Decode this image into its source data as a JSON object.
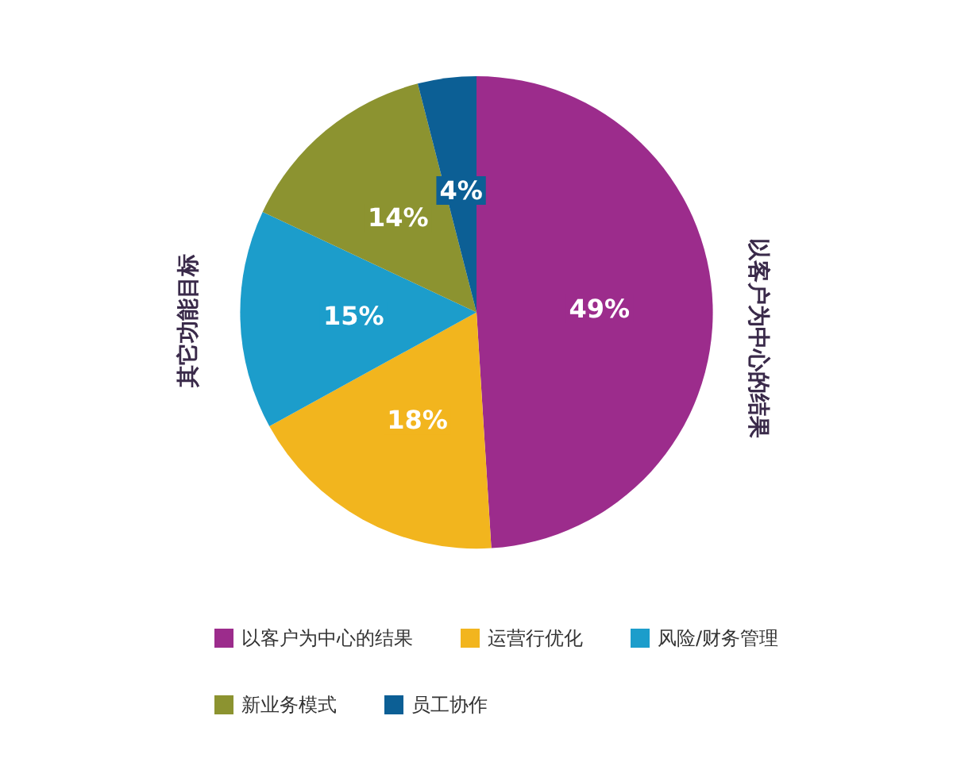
{
  "chart_data": {
    "type": "pie",
    "categories": [
      "以客户为中心的结果",
      "运营行优化",
      "风险/财务管理",
      "新业务模式",
      "员工协作"
    ],
    "values": [
      49,
      18,
      15,
      14,
      4
    ],
    "colors": [
      "#9c2c8c",
      "#f2b51e",
      "#1c9dcb",
      "#8c9330",
      "#0c5f95"
    ],
    "value_labels": [
      "49%",
      "18%",
      "15%",
      "14%",
      "4%"
    ],
    "annotations": [
      "其它功能目标",
      "以客户为中心的结果"
    ],
    "legend": "bottom"
  }
}
